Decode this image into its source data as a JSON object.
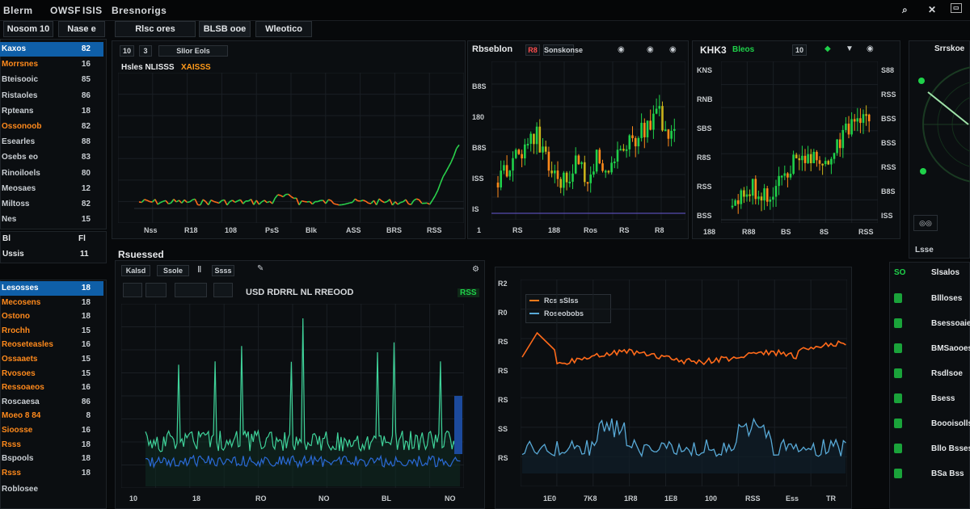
{
  "topbar": {
    "title": "Blerm",
    "menu1": "OWSF",
    "menu2": "ISIS",
    "menu3": "Bresnorigs"
  },
  "tabs": [
    {
      "label": "Nosom 10"
    },
    {
      "label": "Nase e"
    },
    {
      "label": "Rlsc ores"
    },
    {
      "label": "BLSB ooe"
    },
    {
      "label": "Wleotico"
    }
  ],
  "left_list": {
    "top": [
      {
        "name": "Kaxos",
        "value": "82",
        "selected": true
      },
      {
        "name": "Morrsnes",
        "value": "16",
        "orange": true
      },
      {
        "name": "Bteisooic",
        "value": "85"
      },
      {
        "name": "Ristaoles",
        "value": "86"
      },
      {
        "name": "Rpteans",
        "value": "18"
      },
      {
        "name": "Ossonoob",
        "value": "82",
        "orange": true
      },
      {
        "name": "Esearles",
        "value": "88"
      },
      {
        "name": "Osebs eo",
        "value": "83"
      },
      {
        "name": "Rinoiloels",
        "value": "80"
      },
      {
        "name": "Meosaes",
        "value": "12"
      },
      {
        "name": "Miltoss",
        "value": "82"
      },
      {
        "name": "Nes",
        "value": "15"
      }
    ],
    "mid": [
      {
        "name": "Bl",
        "value": "Fl"
      },
      {
        "name": "Ussis",
        "value": "11"
      }
    ],
    "bottom": [
      {
        "name": "Lesosses",
        "value": "18",
        "selected": true
      },
      {
        "name": "Mecosens",
        "value": "18",
        "orange": true
      },
      {
        "name": "Ostono",
        "value": "18",
        "orange": true
      },
      {
        "name": "Rrochh",
        "value": "15",
        "orange": true
      },
      {
        "name": "Reoseteasles",
        "value": "16",
        "orange": true
      },
      {
        "name": "Ossaaets",
        "value": "15",
        "orange": true
      },
      {
        "name": "Rvosoes",
        "value": "15",
        "orange": true
      },
      {
        "name": "Ressoaeos",
        "value": "16",
        "orange": true
      },
      {
        "name": "Roscaesa",
        "value": "86"
      },
      {
        "name": "Moeo 8 84",
        "value": "8",
        "orange": true
      },
      {
        "name": "Sioosse",
        "value": "16",
        "orange": true
      },
      {
        "name": "Rsss",
        "value": "18",
        "orange": true
      },
      {
        "name": "Bspools",
        "value": "18"
      },
      {
        "name": "Rsss",
        "value": "18",
        "orange": true
      }
    ],
    "footer": "Roblosee"
  },
  "chart1": {
    "btn1": "10",
    "btn2": "3",
    "btn3": "Sllor Eols",
    "legend1": "Hsles NLISSS",
    "legend2": "XAISSS",
    "xticks": [
      "Nss",
      "R18",
      "108",
      "PsS",
      "Blk",
      "ASS",
      "BRS",
      "RSS"
    ]
  },
  "chart2": {
    "title": "Rbseblon",
    "b1": "R8",
    "b2": "Sonskonse",
    "yticks": [
      "B8S",
      "180",
      "B8S",
      "ISS",
      "IS"
    ],
    "xticks": [
      "1",
      "RS",
      "188",
      "Ros",
      "RS",
      "R8"
    ]
  },
  "chart3": {
    "title": "KHK3",
    "b1": "Bleos",
    "b2": "10",
    "yticks": [
      "KNS",
      "RNB",
      "SBS",
      "R8S",
      "RSS",
      "BSS"
    ],
    "right_ticks": [
      "S88",
      "RSS",
      "BSS",
      "BSS",
      "RSS",
      "B8S",
      "ISS"
    ],
    "xticks": [
      "188",
      "R88",
      "BS",
      "8S",
      "RSS"
    ]
  },
  "gauge": {
    "title": "Srrskoe",
    "footer": "Lsse"
  },
  "section2": {
    "title": "Rsuessed",
    "btn1": "Kalsd",
    "btn2": "Ssole",
    "btn3": "Ssss",
    "center_label": "USD RDRRL NL RREOOD",
    "badge": "RSS",
    "xticks": [
      "10",
      "18",
      "RO",
      "NO",
      "BL",
      "NO"
    ]
  },
  "chart5": {
    "legend1": "Rcs sSIss",
    "legend2": "Roseobobs",
    "yticks": [
      "R2",
      "R0",
      "RS",
      "RS",
      "RS",
      "SS",
      "RS"
    ],
    "xticks": [
      "1E0",
      "7K8",
      "1R8",
      "1E8",
      "100",
      "RSS",
      "Ess",
      "TR"
    ]
  },
  "watchlist": {
    "header_icon": "SO",
    "header": "Slsalos",
    "items": [
      "Bllloses",
      "Bsessoaies",
      "BMSaooes",
      "Rsdlsoe",
      "Bsess",
      "Boooisolls",
      "Bllo Bsses",
      "BSa Bss"
    ]
  },
  "colors": {
    "bg": "#07090b",
    "panel": "#0b0e11",
    "accent_blue": "#0f5fa8",
    "up": "#1fd14a",
    "down": "#ff7a1a"
  }
}
